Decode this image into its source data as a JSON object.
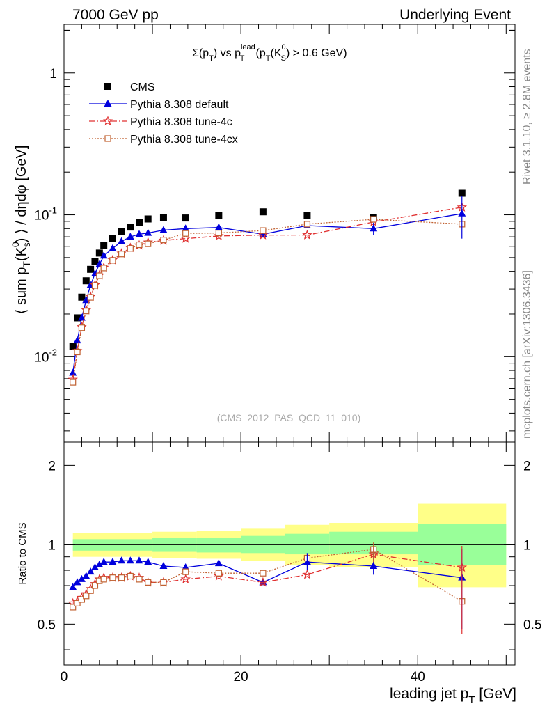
{
  "header": {
    "left": "7000 GeV pp",
    "right": "Underlying Event"
  },
  "side_labels": {
    "rivet": "Rivet 3.1.10, ≥ 2.8M events",
    "mcplots": "mcplots.cern.ch [arXiv:1306.3436]"
  },
  "chart_data": [
    {
      "type": "scatter",
      "panel": "main",
      "title": "Σ(p_T) vs p_T^lead (p_T(K_S^0) > 0.6 GeV)",
      "ylabel": "⟨ sum p_T(K_s^0) ⟩ / dηdφ [GeV]",
      "xlabel": "leading jet p_T [GeV]",
      "watermark": "(CMS_2012_PAS_QCD_11_010)",
      "xlim": [
        0,
        51
      ],
      "ylim": [
        0.0025,
        2.2
      ],
      "y_scale": "log",
      "y_ticks": [
        0.01,
        0.1,
        1
      ],
      "y_tick_labels": [
        "10^-2",
        "10^-1",
        "1"
      ],
      "legend_position": "top-left",
      "x": [
        1.0,
        1.5,
        2.0,
        2.5,
        3.0,
        3.5,
        4.0,
        4.5,
        5.5,
        6.5,
        7.5,
        8.5,
        9.5,
        11.25,
        13.75,
        17.5,
        22.5,
        27.5,
        35.0,
        45.0
      ],
      "series": [
        {
          "name": "CMS",
          "color": "#000000",
          "marker": "square-filled",
          "values": [
            0.0118,
            0.0188,
            0.0263,
            0.0343,
            0.0413,
            0.047,
            0.0538,
            0.061,
            0.0685,
            0.076,
            0.082,
            0.088,
            0.0935,
            0.096,
            0.095,
            0.0985,
            0.105,
            0.0985,
            0.096,
            0.142
          ]
        },
        {
          "name": "Pythia 8.308 default",
          "color": "#0000dd",
          "marker": "triangle-filled",
          "line": "solid",
          "values": [
            0.0077,
            0.013,
            0.0188,
            0.025,
            0.032,
            0.0385,
            0.0447,
            0.0515,
            0.058,
            0.065,
            0.07,
            0.073,
            0.0745,
            0.078,
            0.08,
            0.0815,
            0.073,
            0.084,
            0.08,
            0.102
          ]
        },
        {
          "name": "Pythia 8.308 tune-4c",
          "color": "#e03030",
          "marker": "star-open",
          "line": "dashdot",
          "values": [
            0.0069,
            0.011,
            0.0162,
            0.0213,
            0.0265,
            0.032,
            0.0375,
            0.0425,
            0.048,
            0.0535,
            0.0585,
            0.061,
            0.064,
            0.066,
            0.068,
            0.071,
            0.072,
            0.072,
            0.089,
            0.113
          ]
        },
        {
          "name": "Pythia 8.308 tune-4cx",
          "color": "#c06030",
          "marker": "square-open",
          "line": "dotted",
          "values": [
            0.0066,
            0.0108,
            0.016,
            0.021,
            0.0262,
            0.0318,
            0.0372,
            0.0422,
            0.0478,
            0.053,
            0.058,
            0.0615,
            0.0625,
            0.0665,
            0.074,
            0.0745,
            0.0775,
            0.086,
            0.093,
            0.086
          ]
        }
      ]
    },
    {
      "type": "scatter",
      "panel": "ratio",
      "ylabel": "Ratio to CMS",
      "xlabel": "leading jet p_T [GeV]",
      "xlim": [
        0,
        51
      ],
      "ylim": [
        0.35,
        2.45
      ],
      "y_scale": "log",
      "y_ticks": [
        0.5,
        1,
        2
      ],
      "y_tick_labels": [
        "0.5",
        "1",
        "2"
      ],
      "x_ticks": [
        0,
        20,
        40
      ],
      "x_tick_labels": [
        "0",
        "20",
        "40"
      ],
      "reference_line": 1,
      "uncertainty_bands": {
        "colors": {
          "inner": "#99ff99",
          "outer": "#ffff88"
        },
        "bins": [
          {
            "lo": 1,
            "hi": 10,
            "inner": [
              0.95,
              1.05
            ],
            "outer": [
              0.9,
              1.11
            ]
          },
          {
            "lo": 10,
            "hi": 15,
            "inner": [
              0.94,
              1.06
            ],
            "outer": [
              0.89,
              1.12
            ]
          },
          {
            "lo": 15,
            "hi": 20,
            "inner": [
              0.935,
              1.065
            ],
            "outer": [
              0.885,
              1.125
            ]
          },
          {
            "lo": 20,
            "hi": 25,
            "inner": [
              0.93,
              1.08
            ],
            "outer": [
              0.87,
              1.15
            ]
          },
          {
            "lo": 25,
            "hi": 30,
            "inner": [
              0.92,
              1.1
            ],
            "outer": [
              0.84,
              1.19
            ]
          },
          {
            "lo": 30,
            "hi": 40,
            "inner": [
              0.92,
              1.12
            ],
            "outer": [
              0.82,
              1.21
            ]
          },
          {
            "lo": 40,
            "hi": 50,
            "inner": [
              0.84,
              1.2
            ],
            "outer": [
              0.69,
              1.43
            ]
          }
        ]
      },
      "x": [
        1.0,
        1.5,
        2.0,
        2.5,
        3.0,
        3.5,
        4.0,
        4.5,
        5.5,
        6.5,
        7.5,
        8.5,
        9.5,
        11.25,
        13.75,
        17.5,
        22.5,
        27.5,
        35.0,
        45.0
      ],
      "series": [
        {
          "name": "Pythia 8.308 default",
          "color": "#0000dd",
          "values": [
            0.69,
            0.72,
            0.74,
            0.76,
            0.79,
            0.82,
            0.84,
            0.86,
            0.86,
            0.87,
            0.87,
            0.87,
            0.86,
            0.83,
            0.82,
            0.85,
            0.72,
            0.86,
            0.83,
            0.75
          ]
        },
        {
          "name": "Pythia 8.308 tune-4c",
          "color": "#e03030",
          "values": [
            0.6,
            0.61,
            0.63,
            0.65,
            0.68,
            0.71,
            0.74,
            0.75,
            0.75,
            0.75,
            0.76,
            0.75,
            0.72,
            0.72,
            0.74,
            0.76,
            0.72,
            0.77,
            0.92,
            0.82
          ]
        },
        {
          "name": "Pythia 8.308 tune-4cx",
          "color": "#c06030",
          "values": [
            0.58,
            0.6,
            0.62,
            0.64,
            0.67,
            0.7,
            0.73,
            0.74,
            0.75,
            0.75,
            0.76,
            0.74,
            0.72,
            0.72,
            0.79,
            0.78,
            0.78,
            0.89,
            0.96,
            0.61
          ]
        }
      ]
    }
  ]
}
